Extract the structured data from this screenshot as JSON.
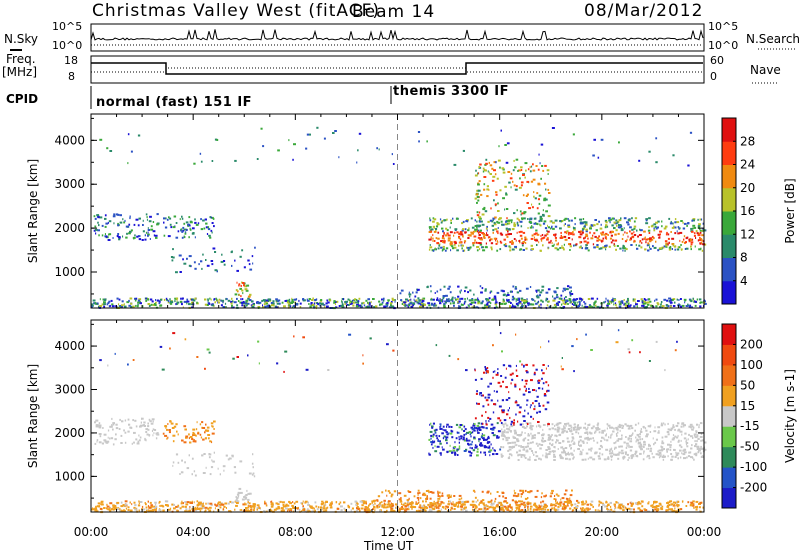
{
  "header": {
    "title": "Christmas Valley West (fitACF)",
    "beam": "Beam 14",
    "date": "08/Mar/2012"
  },
  "strip_labels": {
    "nsky": "N.Sky",
    "nsearch": "N.Search",
    "freq_line1": "Freq.",
    "freq_line2": "[MHz]",
    "nave": "Nave",
    "cpid": "CPID"
  },
  "strip_ticks": {
    "noise_left": [
      "10^5",
      "10^0"
    ],
    "noise_right": [
      "10^5",
      "10^0"
    ],
    "freq_left": [
      "18",
      "8"
    ],
    "nave_right": [
      "60",
      "0"
    ]
  },
  "cpid_segments": [
    {
      "label": "normal (fast) 151 IF",
      "start_hour": 0
    },
    {
      "label": "themis 3300 IF",
      "start_hour": 12
    }
  ],
  "chart_data": [
    {
      "type": "heatmap",
      "title": "Power",
      "ylabel": "Slant Range [km]",
      "xlabel": "Time UT",
      "x_ticks": [
        "00:00",
        "04:00",
        "08:00",
        "12:00",
        "16:00",
        "20:00",
        "00:00"
      ],
      "x_range_hours": [
        0,
        24
      ],
      "ylim": [
        180,
        4600
      ],
      "y_ticks": [
        1000,
        2000,
        3000,
        4000
      ],
      "colorbar": {
        "label": "Power [dB]",
        "ticks": [
          "4",
          "8",
          "12",
          "16",
          "20",
          "24",
          "28"
        ],
        "colors": [
          "#1a12d6",
          "#2b52c4",
          "#2a8a6a",
          "#3aa83a",
          "#b8c22a",
          "#f08a10",
          "#ff3c10",
          "#e01010"
        ]
      }
    },
    {
      "type": "heatmap",
      "title": "Velocity",
      "ylabel": "Slant Range [km]",
      "xlabel": "Time UT",
      "x_ticks": [
        "00:00",
        "04:00",
        "08:00",
        "12:00",
        "16:00",
        "20:00",
        "00:00"
      ],
      "x_range_hours": [
        0,
        24
      ],
      "ylim": [
        180,
        4600
      ],
      "y_ticks": [
        1000,
        2000,
        3000,
        4000
      ],
      "colorbar": {
        "label": "Velocity [m s-1]",
        "ticks": [
          "200",
          "100",
          "50",
          "15",
          "-15",
          "-50",
          "-100",
          "-200"
        ],
        "colors": [
          "#1c1cc8",
          "#2454c8",
          "#2e8a5a",
          "#6ac84a",
          "#c8c8c8",
          "#f0a020",
          "#f07018",
          "#f04a10",
          "#e01010"
        ]
      }
    }
  ],
  "x_axis_title": "Time UT"
}
